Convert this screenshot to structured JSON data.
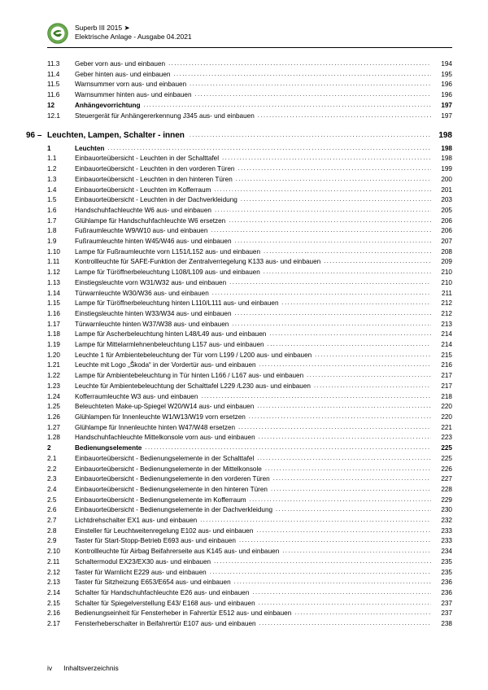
{
  "header": {
    "line1": "Superb III 2015 ➤",
    "line2": "Elektrische Anlage - Ausgabe 04.2021"
  },
  "logo": {
    "outer_color": "#6aa84f",
    "inner_color": "#ffffff",
    "text": "ŠKODA"
  },
  "pre_items": [
    {
      "num": "11.3",
      "title": "Geber vorn aus- und einbauen",
      "page": "194"
    },
    {
      "num": "11.4",
      "title": "Geber hinten aus- und einbauen",
      "page": "195"
    },
    {
      "num": "11.5",
      "title": "Warnsummer vorn aus- und einbauen",
      "page": "196"
    },
    {
      "num": "11.6",
      "title": "Warnsummer hinten aus- und einbauen",
      "page": "196"
    }
  ],
  "pre_chapter": {
    "num": "12",
    "title": "Anhängevorrichtung",
    "page": "197"
  },
  "pre_chapter_items": [
    {
      "num": "12.1",
      "title": "Steuergerät für Anhängererkennung J345 aus- und einbauen",
      "page": "197"
    }
  ],
  "section": {
    "num": "96 –",
    "title": "Leuchten, Lampen, Schalter - innen",
    "page": "198"
  },
  "chapters": [
    {
      "num": "1",
      "title": "Leuchten",
      "page": "198",
      "items": [
        {
          "num": "1.1",
          "title": "Einbauorteübersicht - Leuchten in der Schalttafel",
          "page": "198"
        },
        {
          "num": "1.2",
          "title": "Einbauorteübersicht - Leuchten in den vorderen Türen",
          "page": "199"
        },
        {
          "num": "1.3",
          "title": "Einbauorteübersicht - Leuchten in den hinteren Türen",
          "page": "200"
        },
        {
          "num": "1.4",
          "title": "Einbauorteübersicht - Leuchten im Kofferraum",
          "page": "201"
        },
        {
          "num": "1.5",
          "title": "Einbauorteübersicht - Leuchten in der Dachverkleidung",
          "page": "203"
        },
        {
          "num": "1.6",
          "title": "Handschuhfachleuchte W6 aus- und einbauen",
          "page": "205"
        },
        {
          "num": "1.7",
          "title": "Glühlampe für Handschuhfachleuchte W6 ersetzen",
          "page": "206"
        },
        {
          "num": "1.8",
          "title": "Fußraumleuchte W9/W10 aus- und einbauen",
          "page": "206"
        },
        {
          "num": "1.9",
          "title": "Fußraumleuchte hinten W45/W46 aus- und einbauen",
          "page": "207"
        },
        {
          "num": "1.10",
          "title": "Lampe für Fußraumleuchte vorn L151/L152 aus- und einbauen",
          "page": "208"
        },
        {
          "num": "1.11",
          "title": "Kontrollleuchte für SAFE-Funktion der Zentralverriegelung K133 aus- und einbauen",
          "page": "209"
        },
        {
          "num": "1.12",
          "title": "Lampe für Türöffnerbeleuchtung L108/L109 aus- und einbauen",
          "page": "210"
        },
        {
          "num": "1.13",
          "title": "Einstiegsleuchte vorn W31/W32 aus- und einbauen",
          "page": "210"
        },
        {
          "num": "1.14",
          "title": "Türwarnleuchte W30/W36 aus- und einbauen",
          "page": "211"
        },
        {
          "num": "1.15",
          "title": "Lampe für Türöffnerbeleuchtung hinten L110/L111 aus- und einbauen",
          "page": "212"
        },
        {
          "num": "1.16",
          "title": "Einstiegsleuchte hinten W33/W34 aus- und einbauen",
          "page": "212"
        },
        {
          "num": "1.17",
          "title": "Türwarnleuchte hinten W37/W38 aus- und einbauen",
          "page": "213"
        },
        {
          "num": "1.18",
          "title": "Lampe für Ascherbeleuchtung hinten L48/L49 aus- und einbauen",
          "page": "214"
        },
        {
          "num": "1.19",
          "title": "Lampe für Mittelarmlehnenbeleuchtung L157 aus- und einbauen",
          "page": "214"
        },
        {
          "num": "1.20",
          "title": "Leuchte 1 für Ambientebeleuchtung der Tür vorn L199 / L200 aus- und einbauen",
          "page": "215"
        },
        {
          "num": "1.21",
          "title": "Leuchte mit Logo „Škoda“ in der Vordertür aus- und einbauen",
          "page": "216"
        },
        {
          "num": "1.22",
          "title": "Lampe für Ambientebeleuchtung in Tür hinten L166 / L167 aus- und einbauen",
          "page": "217"
        },
        {
          "num": "1.23",
          "title": "Leuchte für Ambientebeleuchtung der Schalttafel L229 /L230 aus- und einbauen",
          "page": "217"
        },
        {
          "num": "1.24",
          "title": "Kofferraumleuchte W3 aus- und einbauen",
          "page": "218"
        },
        {
          "num": "1.25",
          "title": "Beleuchteten Make-up-Spiegel W20/W14 aus- und einbauen",
          "page": "220"
        },
        {
          "num": "1.26",
          "title": "Glühlampen für Innenleuchte W1/W13/W19 vorn ersetzen",
          "page": "220"
        },
        {
          "num": "1.27",
          "title": "Glühlampe für Innenleuchte hinten W47/W48 ersetzen",
          "page": "221"
        },
        {
          "num": "1.28",
          "title": "Handschuhfachleuchte Mittelkonsole vorn aus- und einbauen",
          "page": "223"
        }
      ]
    },
    {
      "num": "2",
      "title": "Bedienungselemente",
      "page": "225",
      "items": [
        {
          "num": "2.1",
          "title": "Einbauorteübersicht - Bedienungselemente in der Schalttafel",
          "page": "225"
        },
        {
          "num": "2.2",
          "title": "Einbauorteübersicht - Bedienungselemente in der Mittelkonsole",
          "page": "226"
        },
        {
          "num": "2.3",
          "title": "Einbauorteübersicht - Bedienungselemente in den vorderen Türen",
          "page": "227"
        },
        {
          "num": "2.4",
          "title": "Einbauorteübersicht - Bedienungselemente in den hinteren Türen",
          "page": "228"
        },
        {
          "num": "2.5",
          "title": "Einbauorteübersicht - Bedienungselemente im Kofferraum",
          "page": "229"
        },
        {
          "num": "2.6",
          "title": "Einbauorteübersicht - Bedienungselemente in der Dachverkleidung",
          "page": "230"
        },
        {
          "num": "2.7",
          "title": "Lichtdrehschalter EX1 aus- und einbauen",
          "page": "232"
        },
        {
          "num": "2.8",
          "title": "Einsteller für Leuchtweitenregelung E102 aus- und einbauen",
          "page": "233"
        },
        {
          "num": "2.9",
          "title": "Taster für Start-Stopp-Betrieb E693 aus- und einbauen",
          "page": "233"
        },
        {
          "num": "2.10",
          "title": "Kontrollleuchte für Airbag Beifahrerseite aus K145 aus- und einbauen",
          "page": "234"
        },
        {
          "num": "2.11",
          "title": "Schaltermodul EX23/EX30 aus- und einbauen",
          "page": "235"
        },
        {
          "num": "2.12",
          "title": "Taster für Warnlicht E229 aus- und einbauen",
          "page": "235"
        },
        {
          "num": "2.13",
          "title": "Taster für Sitzheizung E653/E654 aus- und einbauen",
          "page": "236"
        },
        {
          "num": "2.14",
          "title": "Schalter für Handschuhfachleuchte E26 aus- und einbauen",
          "page": "236"
        },
        {
          "num": "2.15",
          "title": "Schalter für Spiegelverstellung E43/ E168 aus- und einbauen",
          "page": "237"
        },
        {
          "num": "2.16",
          "title": "Bedienungseinheit für Fensterheber in Fahrertür E512 aus- und einbauen",
          "page": "237"
        },
        {
          "num": "2.17",
          "title": "Fensterheberschalter in Beifahrertür E107 aus- und einbauen",
          "page": "238"
        }
      ]
    }
  ],
  "footer": {
    "page_roman": "iv",
    "label": "Inhaltsverzeichnis"
  }
}
